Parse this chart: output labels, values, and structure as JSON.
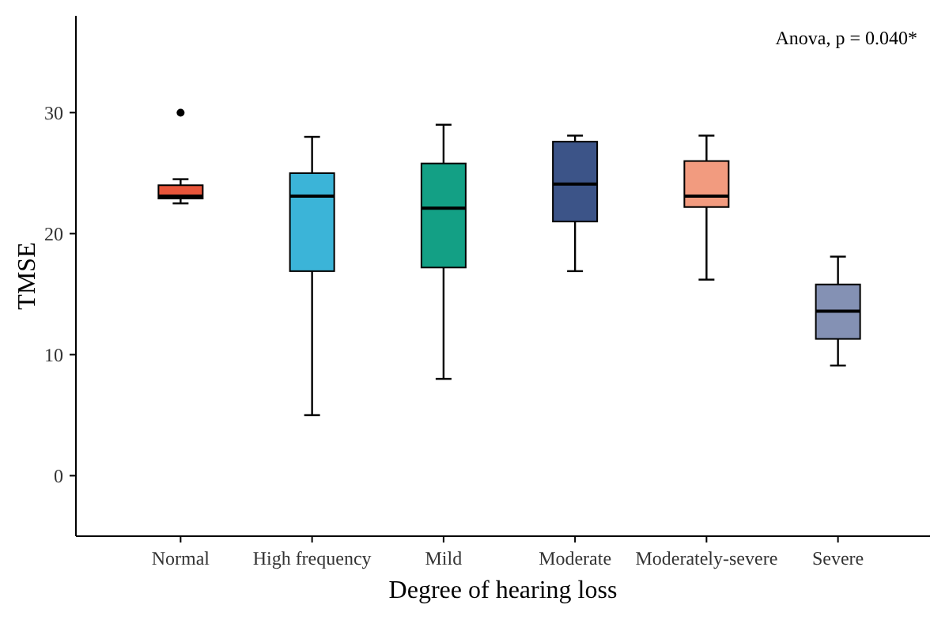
{
  "chart_data": {
    "type": "box",
    "xlabel": "Degree of hearing loss",
    "ylabel": "TMSE",
    "annotations": [
      "Anova, p = 0.040*"
    ],
    "categories": [
      "Normal",
      "High frequency",
      "Mild",
      "Moderate",
      "Moderately-severe",
      "Severe"
    ],
    "colors": [
      "#e8553a",
      "#3bb4d8",
      "#13a085",
      "#3c5488",
      "#f29b7f",
      "#8491b4"
    ],
    "boxes": [
      {
        "low": 22.5,
        "q1": 22.9,
        "median": 23.1,
        "q3": 24.0,
        "high": 24.5,
        "outliers": [
          30
        ]
      },
      {
        "low": 5,
        "q1": 16.9,
        "median": 23.1,
        "q3": 25.0,
        "high": 28
      },
      {
        "low": 8,
        "q1": 17.2,
        "median": 22.1,
        "q3": 25.8,
        "high": 29
      },
      {
        "low": 16.9,
        "q1": 21.0,
        "median": 24.1,
        "q3": 27.6,
        "high": 28.1
      },
      {
        "low": 16.2,
        "q1": 22.2,
        "median": 23.1,
        "q3": 26.0,
        "high": 28.1
      },
      {
        "low": 9.1,
        "q1": 11.3,
        "median": 13.6,
        "q3": 15.8,
        "high": 18.1
      }
    ],
    "ylim": [
      -5,
      38
    ],
    "yticks": [
      0,
      10,
      20,
      30
    ],
    "grid": false
  }
}
